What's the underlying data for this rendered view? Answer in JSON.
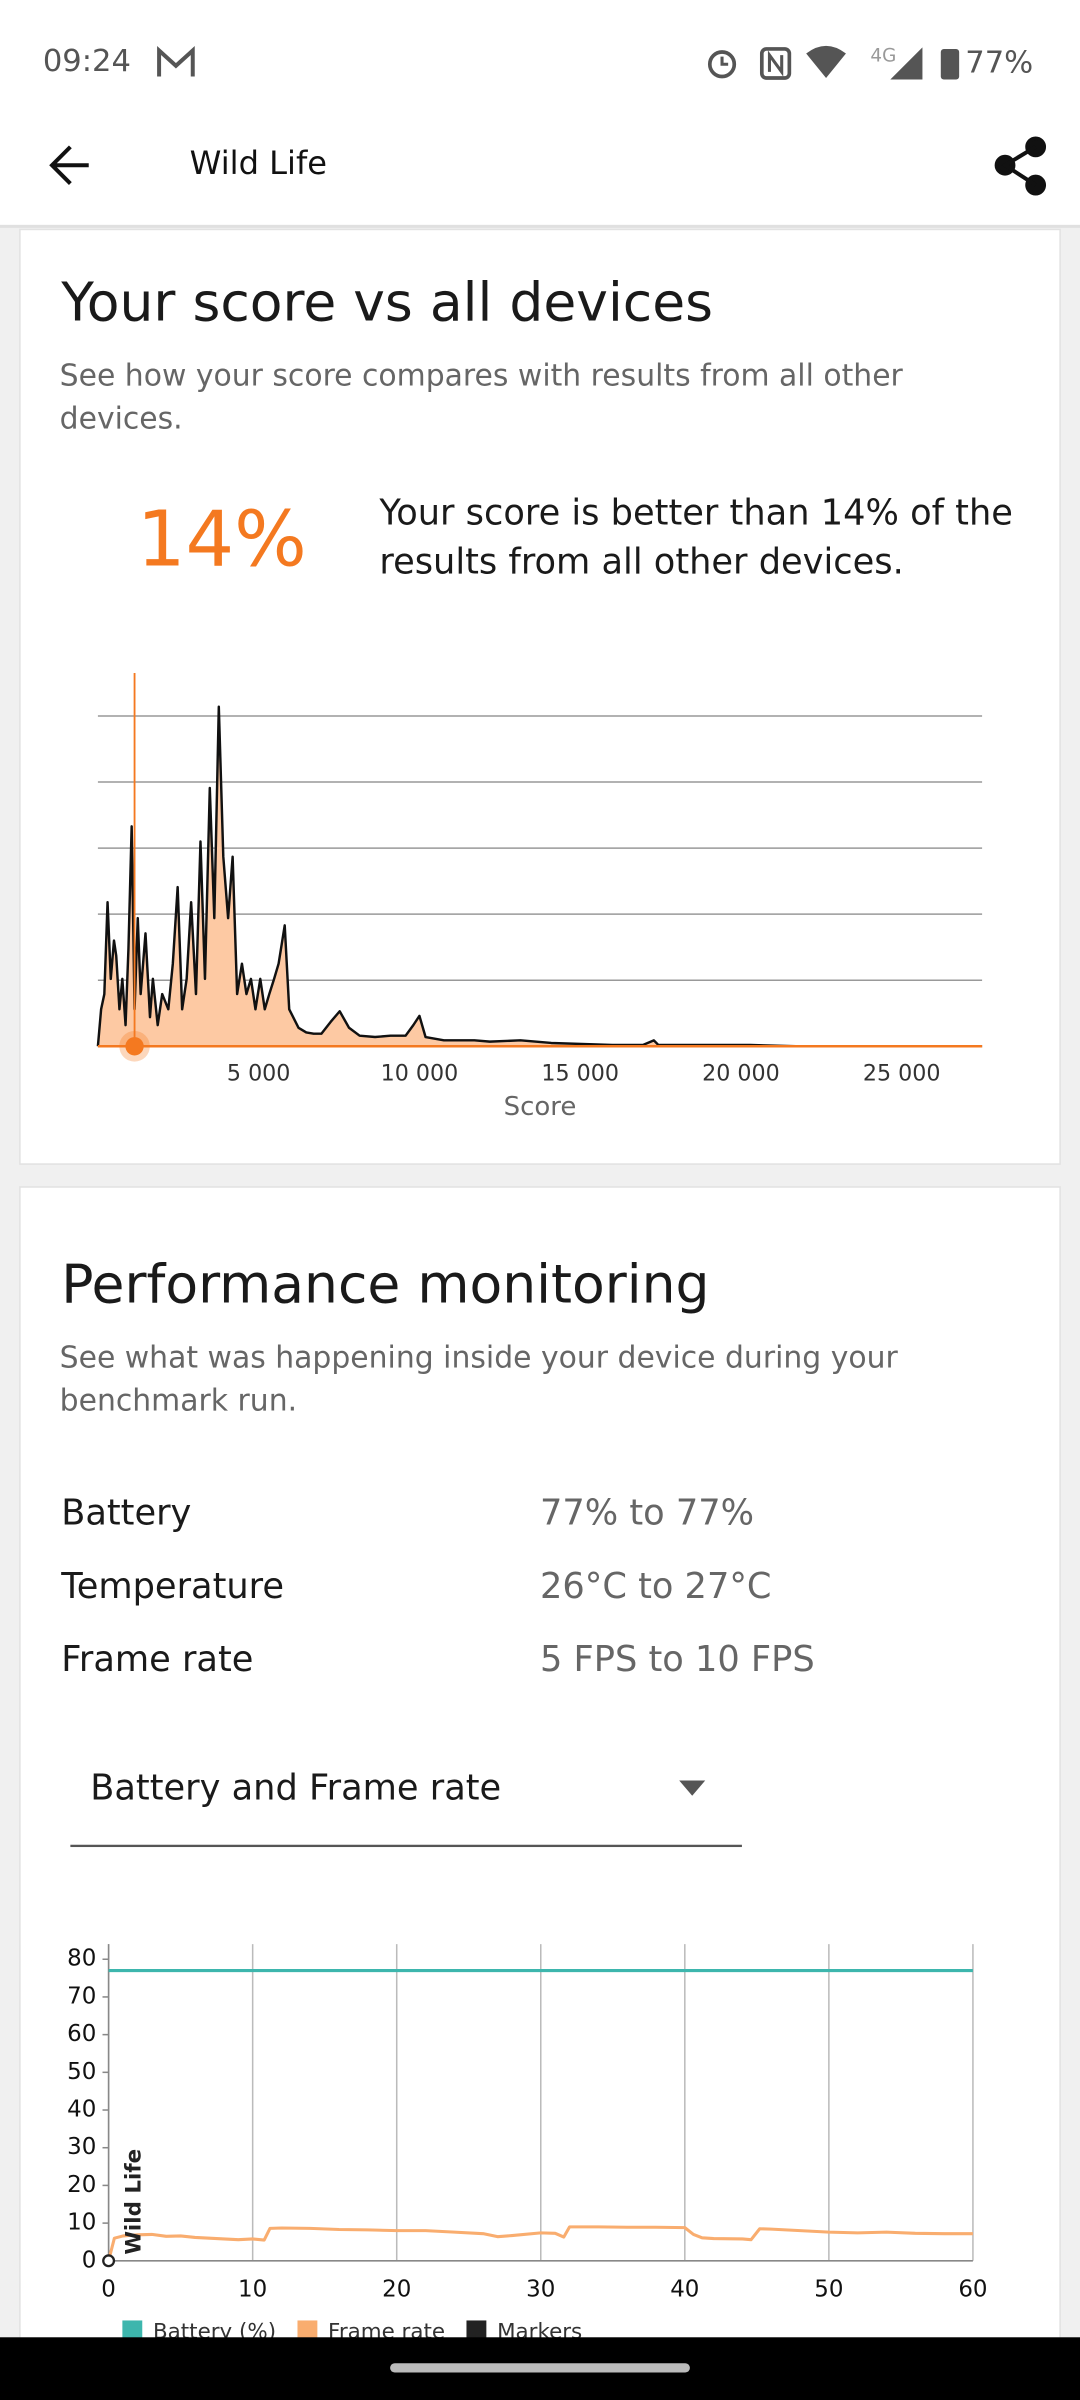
{
  "status_bar": {
    "time": "09:24",
    "network": "4G",
    "battery": "77%"
  },
  "app_bar": {
    "title": "Wild Life"
  },
  "score_card": {
    "title": "Your score vs all devices",
    "description": "See how your score compares with results from all other devices.",
    "percentile": "14%",
    "summary": "Your score is better than 14% of the results from all other devices."
  },
  "performance": {
    "title": "Performance monitoring",
    "description": "See what was happening inside your device during your benchmark run.",
    "rows": [
      {
        "label": "Battery",
        "value": "77% to 77%"
      },
      {
        "label": "Temperature",
        "value": "26°C to 27°C"
      },
      {
        "label": "Frame rate",
        "value": "5 FPS to 10 FPS"
      }
    ],
    "dropdown": "Battery and Frame rate"
  },
  "chart_data": [
    {
      "type": "area",
      "xlabel": "Score",
      "x": [
        0,
        100,
        200,
        300,
        400,
        500,
        570,
        670,
        760,
        860,
        950,
        1050,
        1140,
        1240,
        1330,
        1480,
        1620,
        1710,
        1860,
        2000,
        2190,
        2330,
        2480,
        2620,
        2760,
        2900,
        3050,
        3190,
        3330,
        3480,
        3620,
        3760,
        3900,
        4050,
        4190,
        4330,
        4480,
        4620,
        4760,
        4900,
        5050,
        5190,
        5330,
        5480,
        5620,
        5810,
        5950,
        6240,
        6480,
        6710,
        6950,
        7240,
        7520,
        7810,
        8140,
        8620,
        9100,
        9570,
        9810,
        10000,
        10190,
        10760,
        11710,
        12190,
        13140,
        14100,
        16000,
        16950,
        17290,
        17430,
        20290,
        21710,
        27500
      ],
      "values": [
        0,
        0.56,
        0.79,
        2.18,
        1.02,
        1.6,
        1.37,
        0.56,
        1.02,
        0.32,
        1.48,
        3.33,
        0.56,
        1.94,
        0.79,
        1.71,
        0.44,
        1.02,
        0.32,
        0.79,
        0.56,
        1.25,
        2.41,
        0.56,
        1.02,
        2.18,
        0.79,
        3.1,
        1.02,
        3.91,
        1.94,
        5.14,
        2.87,
        1.94,
        2.87,
        0.79,
        1.25,
        0.79,
        1.02,
        0.56,
        1.02,
        0.56,
        0.79,
        1.02,
        1.25,
        1.83,
        0.56,
        0.28,
        0.21,
        0.19,
        0.19,
        0.37,
        0.53,
        0.28,
        0.16,
        0.14,
        0.16,
        0.16,
        0.32,
        0.46,
        0.14,
        0.09,
        0.09,
        0.07,
        0.09,
        0.05,
        0.02,
        0.02,
        0.09,
        0.02,
        0.02,
        0,
        0
      ],
      "color": "#111111",
      "fill": "#fdc9a3",
      "highlight_color": "#f47920",
      "your_score": 1140,
      "xlim": [
        0,
        27500
      ],
      "ylim": [
        0,
        5.65
      ],
      "xticks": [
        {
          "value": 5000,
          "label": "5 000"
        },
        {
          "value": 10000,
          "label": "10 000"
        },
        {
          "value": 15000,
          "label": "15 000"
        },
        {
          "value": 20000,
          "label": "20 000"
        },
        {
          "value": 25000,
          "label": "25 000"
        }
      ],
      "yticks": [
        1,
        2,
        3,
        4,
        5
      ],
      "show_ytick_labels": false,
      "grid": true
    },
    {
      "type": "line",
      "xlim": [
        0,
        60
      ],
      "ylim": [
        0,
        84
      ],
      "xticks": [
        0,
        10,
        20,
        30,
        40,
        50,
        60
      ],
      "yticks": [
        0,
        10,
        20,
        30,
        40,
        50,
        60,
        70,
        80
      ],
      "grid": "x",
      "legend": "bottom",
      "series": [
        {
          "name": "Battery (%)",
          "color": "#3db6ad",
          "x": [
            0,
            60
          ],
          "values": [
            77,
            77
          ]
        },
        {
          "name": "Frame rate",
          "color": "#f9ad6f",
          "x": [
            0,
            0.4,
            1,
            2,
            3,
            4,
            5,
            6,
            7,
            8,
            9,
            10,
            10.8,
            11.2,
            12,
            14,
            16,
            18,
            20,
            22,
            24,
            26,
            27,
            28,
            30,
            31,
            31.6,
            32,
            34,
            36,
            38,
            40,
            40.6,
            41.2,
            42,
            44,
            44.6,
            45.2,
            46,
            48,
            50,
            52,
            54,
            56,
            58,
            60
          ],
          "values": [
            0,
            6,
            6.6,
            6.9,
            7,
            6.5,
            6.6,
            6.2,
            6,
            5.8,
            5.6,
            5.8,
            5.5,
            8.6,
            8.7,
            8.6,
            8.3,
            8.2,
            8,
            8,
            7.6,
            7.2,
            6.4,
            6.7,
            7.4,
            7.3,
            6.3,
            9,
            9,
            8.9,
            8.9,
            8.8,
            7,
            6.1,
            5.9,
            5.8,
            5.6,
            8.5,
            8.4,
            8,
            7.6,
            7.4,
            7.6,
            7.3,
            7.2,
            7.2
          ]
        },
        {
          "name": "Markers",
          "color": "#222222",
          "markers": [
            {
              "x": 0,
              "label": "Wild Life"
            }
          ]
        }
      ]
    }
  ]
}
